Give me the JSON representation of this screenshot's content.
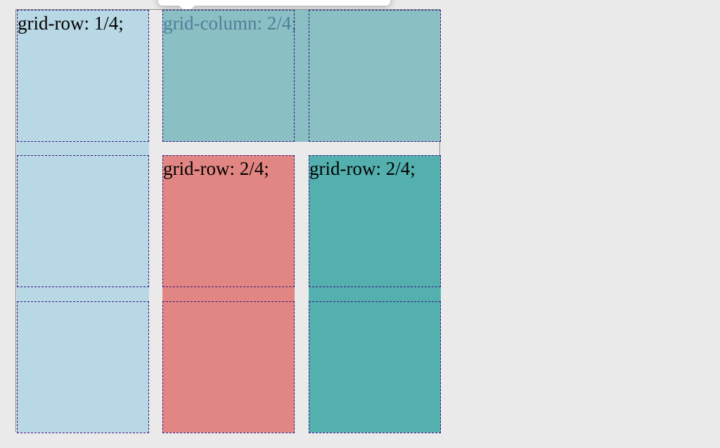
{
  "grid": {
    "items": [
      {
        "id": "item-a",
        "label": "grid-row: 1/4;",
        "color": "#b7d8e4"
      },
      {
        "id": "item-b",
        "label": "grid-column: 2/4;",
        "color": "#8abfc3"
      },
      {
        "id": "item-c",
        "label": "grid-row: 2/4;",
        "color": "#e28683"
      },
      {
        "id": "item-d",
        "label": "grid-row: 2/4;",
        "color": "#53b0ae"
      }
    ],
    "outline_color": "#3b1585",
    "rows": 3,
    "columns": 3
  }
}
